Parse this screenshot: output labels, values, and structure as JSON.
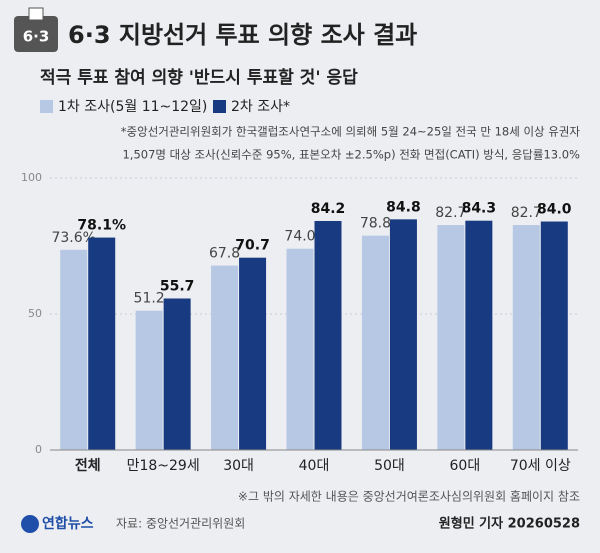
{
  "chart_data": {
    "type": "bar",
    "icon_text": "6·3",
    "title": "6·3 지방선거 투표 의향 조사 결과",
    "subtitle": "적극 투표 참여 의향 '반드시 투표할 것' 응답",
    "footnote": [
      "*중앙선거관리위원회가 한국갤럽조사연구소에 의뢰해 5월 24~25일 전국 만 18세 이상 유권자",
      "1,507명 대상 조사(신뢰수준 95%, 표본오차 ±2.5%p) 전화 면접(CATI) 방식, 응답률13.0%"
    ],
    "categories": [
      "전체",
      "만18~29세",
      "30대",
      "40대",
      "50대",
      "60대",
      "70세 이상"
    ],
    "series": [
      {
        "name": "1차 조사(5월 11~12일)",
        "color": "#b7c8e4",
        "values": [
          73.6,
          51.2,
          67.8,
          74.0,
          78.8,
          82.7,
          82.7
        ],
        "value_labels": [
          "73.6%",
          "51.2",
          "67.8",
          "74.0",
          "78.8",
          "82.7",
          "82.7"
        ]
      },
      {
        "name": "2차 조사*",
        "color": "#183a80",
        "values": [
          78.1,
          55.7,
          70.7,
          84.2,
          84.8,
          84.3,
          84.0
        ],
        "value_labels": [
          "78.1%",
          "55.7",
          "70.7",
          "84.2",
          "84.8",
          "84.3",
          "84.0"
        ]
      }
    ],
    "ylim": [
      0,
      100
    ],
    "yticks": [
      0,
      50,
      100
    ],
    "grid": true,
    "note": "※그 밖의 자세한 내용은 중앙선거여론조사심의위원회 홈페이지 참조",
    "logo": "연합뉴스",
    "source": "자료: 중앙선거관리위원회",
    "credit": "원형민 기자 20260528"
  }
}
